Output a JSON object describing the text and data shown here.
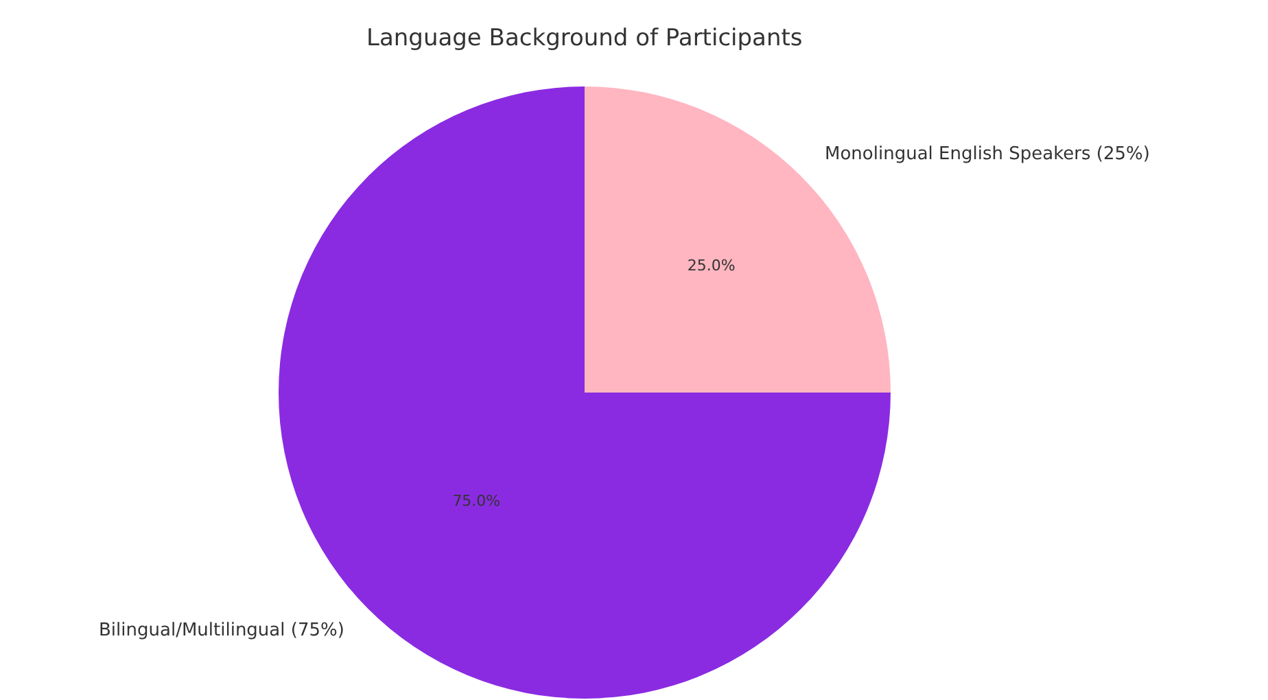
{
  "chart_data": {
    "type": "pie",
    "title": "Language Background of Participants",
    "categories": [
      "Monolingual English Speakers (25%)",
      "Bilingual/Multilingual (75%)"
    ],
    "values": [
      25,
      75
    ],
    "colors": [
      "#ffb6c1",
      "#8a2be2"
    ],
    "value_labels": [
      "25.0%",
      "75.0%"
    ],
    "legend": false
  }
}
